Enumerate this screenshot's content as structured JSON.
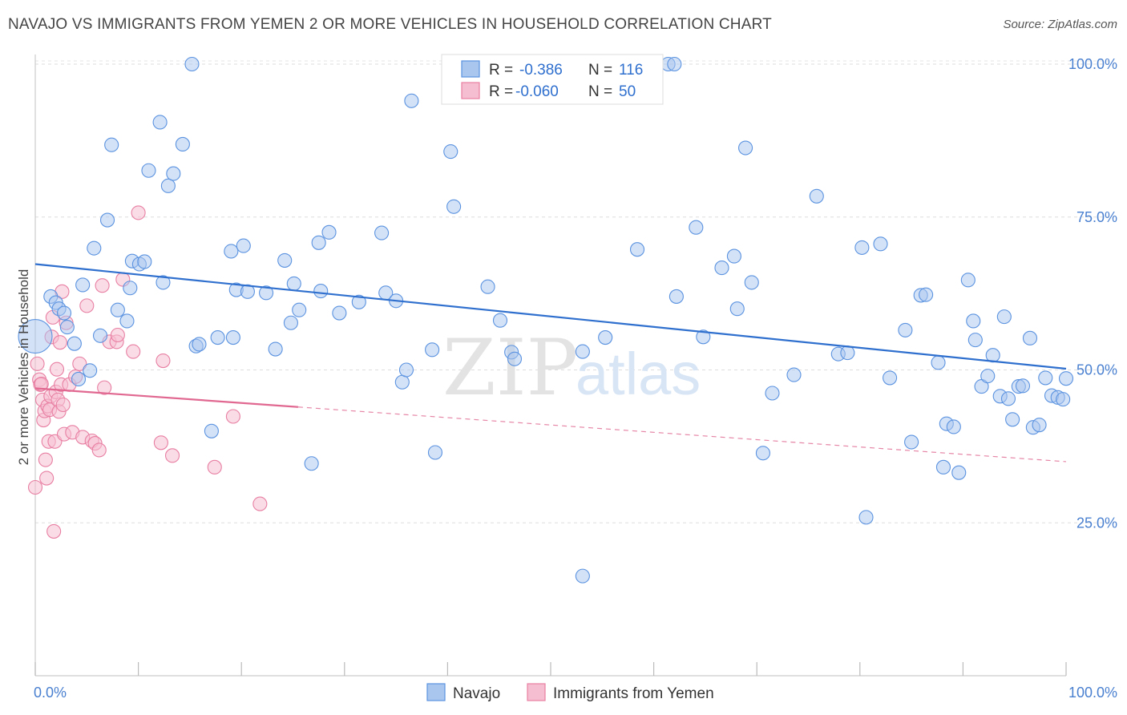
{
  "header": {
    "title": "NAVAJO VS IMMIGRANTS FROM YEMEN 2 OR MORE VEHICLES IN HOUSEHOLD CORRELATION CHART",
    "source": "Source: ZipAtlas.com"
  },
  "watermark": {
    "zip": "ZIP",
    "atlas": "atlas"
  },
  "legend": {
    "r_label": "R =",
    "n_label": "N =",
    "navajo": {
      "r": "-0.386",
      "n": "116"
    },
    "yemen": {
      "r": "-0.060",
      "n": "50"
    }
  },
  "bottom_legend": {
    "navajo": "Navajo",
    "yemen": "Immigrants from Yemen"
  },
  "chart_data": {
    "type": "scatter",
    "title": "NAVAJO VS IMMIGRANTS FROM YEMEN 2 OR MORE VEHICLES IN HOUSEHOLD CORRELATION CHART",
    "xlabel": "",
    "ylabel": "2 or more Vehicles in Household",
    "xlim": [
      0,
      100
    ],
    "ylim": [
      0,
      105
    ],
    "x_tick_labels": [
      "0.0%",
      "100.0%"
    ],
    "y_ticks": [
      25,
      50,
      75,
      100
    ],
    "y_tick_labels": [
      "25.0%",
      "50.0%",
      "75.0%",
      "100.0%"
    ],
    "grid": true,
    "legend_position": "top-center",
    "colors": {
      "navajo": "#5b93e0",
      "navajo_fill": "#a9c6ef",
      "navajo_line": "#2f6fce",
      "yemen": "#e87fa2",
      "yemen_fill": "#f5bfd1",
      "yemen_line": "#e06891"
    },
    "series": [
      {
        "name": "Navajo",
        "trend": {
          "x": [
            0,
            100
          ],
          "y": [
            67.3,
            50.2
          ]
        },
        "points": [
          [
            0,
            55.5
          ],
          [
            1.5,
            62
          ],
          [
            2,
            61
          ],
          [
            2.3,
            60
          ],
          [
            2.8,
            59.3
          ],
          [
            3.1,
            57
          ],
          [
            3.8,
            54.3
          ],
          [
            4.2,
            48.5
          ],
          [
            5.3,
            49.9
          ],
          [
            4.6,
            63.9
          ],
          [
            5.7,
            69.9
          ],
          [
            6.3,
            55.6
          ],
          [
            7.0,
            74.5
          ],
          [
            7.4,
            86.8
          ],
          [
            8,
            59.8
          ],
          [
            8.9,
            58
          ],
          [
            9.2,
            63.4
          ],
          [
            9.4,
            67.8
          ],
          [
            10.1,
            67.3
          ],
          [
            10.6,
            67.7
          ],
          [
            11,
            82.6
          ],
          [
            12.1,
            90.5
          ],
          [
            12.4,
            64.3
          ],
          [
            12.9,
            80.1
          ],
          [
            13.4,
            82.1
          ],
          [
            14.3,
            86.9
          ],
          [
            15.2,
            100
          ],
          [
            15.6,
            53.9
          ],
          [
            15.9,
            54.2
          ],
          [
            17.1,
            40.0
          ],
          [
            17.7,
            55.3
          ],
          [
            19,
            69.4
          ],
          [
            19.2,
            55.3
          ],
          [
            19.5,
            63.1
          ],
          [
            20.2,
            70.3
          ],
          [
            20.6,
            62.8
          ],
          [
            22.4,
            62.6
          ],
          [
            23.3,
            53.4
          ],
          [
            24.2,
            67.9
          ],
          [
            24.8,
            57.7
          ],
          [
            25.1,
            64.1
          ],
          [
            25.6,
            59.8
          ],
          [
            26.8,
            34.7
          ],
          [
            27.5,
            70.8
          ],
          [
            27.7,
            62.9
          ],
          [
            28.5,
            72.5
          ],
          [
            29.5,
            59.3
          ],
          [
            31.4,
            61.1
          ],
          [
            33.6,
            72.4
          ],
          [
            34,
            62.6
          ],
          [
            35,
            61.3
          ],
          [
            35.6,
            48.0
          ],
          [
            36,
            50.0
          ],
          [
            36.5,
            94
          ],
          [
            38.5,
            53.3
          ],
          [
            38.8,
            36.5
          ],
          [
            40.3,
            85.7
          ],
          [
            40.6,
            76.7
          ],
          [
            43.9,
            63.6
          ],
          [
            45.1,
            58.1
          ],
          [
            46.2,
            52.9
          ],
          [
            46.5,
            51.8
          ],
          [
            53.1,
            16.3
          ],
          [
            53.1,
            53
          ],
          [
            55.3,
            55.3
          ],
          [
            58.4,
            69.7
          ],
          [
            61.4,
            100
          ],
          [
            62,
            100
          ],
          [
            62.2,
            62
          ],
          [
            64.1,
            73.3
          ],
          [
            64.8,
            55.4
          ],
          [
            66.6,
            66.7
          ],
          [
            67.8,
            68.6
          ],
          [
            68.1,
            60
          ],
          [
            68.9,
            86.3
          ],
          [
            69.5,
            64.3
          ],
          [
            70.6,
            36.4
          ],
          [
            71.5,
            46.2
          ],
          [
            73.6,
            49.2
          ],
          [
            75.8,
            78.4
          ],
          [
            77.9,
            52.6
          ],
          [
            78.8,
            52.8
          ],
          [
            80.2,
            70
          ],
          [
            80.6,
            25.9
          ],
          [
            82,
            70.6
          ],
          [
            82.9,
            48.7
          ],
          [
            84.4,
            56.5
          ],
          [
            85.0,
            38.2
          ],
          [
            85.9,
            62.2
          ],
          [
            86.4,
            62.3
          ],
          [
            87.6,
            51.2
          ],
          [
            88.1,
            34.1
          ],
          [
            88.4,
            41.2
          ],
          [
            89.1,
            40.7
          ],
          [
            89.6,
            33.2
          ],
          [
            90.5,
            64.7
          ],
          [
            91.0,
            58.0
          ],
          [
            91.2,
            54.9
          ],
          [
            91.8,
            47.3
          ],
          [
            92.4,
            49.0
          ],
          [
            92.9,
            52.4
          ],
          [
            93.6,
            45.7
          ],
          [
            94.0,
            58.7
          ],
          [
            94.4,
            45.3
          ],
          [
            94.8,
            41.9
          ],
          [
            95.4,
            47.3
          ],
          [
            95.8,
            47.4
          ],
          [
            96.5,
            55.2
          ],
          [
            96.8,
            40.6
          ],
          [
            97.4,
            41
          ],
          [
            98.0,
            48.7
          ],
          [
            98.6,
            45.8
          ],
          [
            99.2,
            45.5
          ],
          [
            99.7,
            45.2
          ],
          [
            100,
            48.6
          ]
        ]
      },
      {
        "name": "Immigrants from Yemen",
        "trend": {
          "x": [
            0,
            100
          ],
          "y": [
            47.0,
            35.0
          ],
          "solid_until_x": 25.5
        },
        "points": [
          [
            0,
            30.8
          ],
          [
            0.2,
            51.0
          ],
          [
            0.4,
            48.4
          ],
          [
            0.5,
            47.6
          ],
          [
            0.6,
            47.7
          ],
          [
            0.7,
            45.1
          ],
          [
            0.8,
            41.8
          ],
          [
            0.9,
            43.3
          ],
          [
            1.0,
            35.3
          ],
          [
            1.1,
            32.3
          ],
          [
            1.2,
            44.1
          ],
          [
            1.3,
            38.3
          ],
          [
            1.4,
            43.5
          ],
          [
            1.5,
            45.7
          ],
          [
            1.6,
            55.4
          ],
          [
            1.7,
            58.6
          ],
          [
            1.8,
            23.6
          ],
          [
            1.9,
            38.3
          ],
          [
            2.0,
            46.4
          ],
          [
            2.1,
            50.1
          ],
          [
            2.2,
            45.1
          ],
          [
            2.3,
            43.2
          ],
          [
            2.4,
            54.5
          ],
          [
            2.5,
            47.6
          ],
          [
            2.6,
            62.8
          ],
          [
            2.7,
            44.3
          ],
          [
            2.8,
            39.5
          ],
          [
            3.0,
            57.7
          ],
          [
            3.3,
            47.6
          ],
          [
            3.6,
            39.8
          ],
          [
            3.9,
            48.9
          ],
          [
            4.3,
            51.0
          ],
          [
            4.6,
            39.0
          ],
          [
            5.0,
            60.5
          ],
          [
            5.5,
            38.4
          ],
          [
            5.8,
            38.0
          ],
          [
            6.2,
            36.9
          ],
          [
            6.5,
            63.8
          ],
          [
            6.7,
            47.1
          ],
          [
            7.2,
            54.6
          ],
          [
            7.9,
            54.6
          ],
          [
            8.0,
            55.7
          ],
          [
            8.5,
            64.8
          ],
          [
            9.5,
            53.0
          ],
          [
            10.0,
            75.7
          ],
          [
            12.2,
            38.1
          ],
          [
            12.4,
            51.5
          ],
          [
            13.3,
            36.0
          ],
          [
            17.4,
            34.1
          ],
          [
            19.2,
            42.4
          ],
          [
            21.8,
            28.1
          ]
        ]
      }
    ]
  }
}
